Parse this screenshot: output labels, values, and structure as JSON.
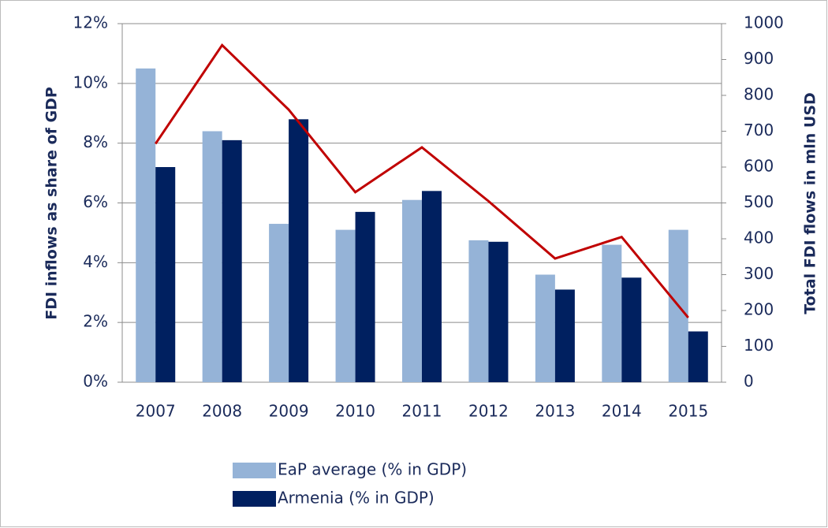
{
  "chart_data": {
    "type": "bar",
    "categories": [
      "2007",
      "2008",
      "2009",
      "2010",
      "2011",
      "2012",
      "2013",
      "2014",
      "2015"
    ],
    "y_label": "FDI inflows as share of GDP",
    "y2_label": "Total FDI flows in mln USD",
    "series": [
      {
        "name": "EaP average (% in GDP)",
        "color": "#95b3d7",
        "values": [
          10.5,
          8.4,
          5.3,
          5.1,
          6.1,
          4.75,
          3.6,
          4.6,
          5.1
        ]
      },
      {
        "name": "Armenia (% in GDP)",
        "color": "#002060",
        "values": [
          7.2,
          8.1,
          8.8,
          5.7,
          6.4,
          4.7,
          3.1,
          3.5,
          1.7
        ]
      },
      {
        "type": "line",
        "axis": "y2",
        "color": "#c00000",
        "values": [
          665,
          940,
          760,
          530,
          655,
          505,
          345,
          405,
          180
        ]
      }
    ],
    "ylim": [
      0,
      12
    ],
    "yticks": [
      {
        "value": 0,
        "label": "0%"
      },
      {
        "value": 2,
        "label": "2%"
      },
      {
        "value": 4,
        "label": "4%"
      },
      {
        "value": 6,
        "label": "6%"
      },
      {
        "value": 8,
        "label": "8%"
      },
      {
        "value": 10,
        "label": "10%"
      },
      {
        "value": 12,
        "label": "12%"
      }
    ],
    "y2lim": [
      0,
      1000
    ],
    "y2ticks": [
      0,
      100,
      200,
      300,
      400,
      500,
      600,
      700,
      800,
      900,
      1000
    ],
    "grid": true
  }
}
